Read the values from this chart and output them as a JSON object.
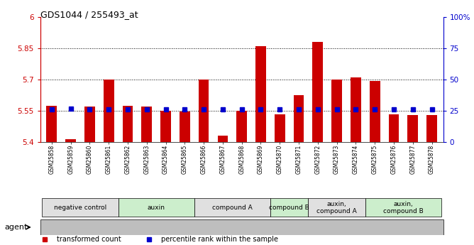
{
  "title": "GDS1044 / 255493_at",
  "samples": [
    "GSM25858",
    "GSM25859",
    "GSM25860",
    "GSM25861",
    "GSM25862",
    "GSM25863",
    "GSM25864",
    "GSM25865",
    "GSM25866",
    "GSM25867",
    "GSM25868",
    "GSM25869",
    "GSM25870",
    "GSM25871",
    "GSM25872",
    "GSM25873",
    "GSM25874",
    "GSM25875",
    "GSM25876",
    "GSM25877",
    "GSM25878"
  ],
  "bar_values": [
    5.575,
    5.415,
    5.57,
    5.7,
    5.575,
    5.57,
    5.55,
    5.548,
    5.7,
    5.43,
    5.55,
    5.86,
    5.535,
    5.625,
    5.88,
    5.7,
    5.71,
    5.695,
    5.535,
    5.53,
    5.53
  ],
  "percentile_values": [
    5.557,
    5.56,
    5.558,
    5.557,
    5.557,
    5.557,
    5.558,
    5.558,
    5.558,
    5.558,
    5.557,
    5.558,
    5.558,
    5.558,
    5.558,
    5.558,
    5.557,
    5.557,
    5.557,
    5.557,
    5.557
  ],
  "bar_color": "#cc0000",
  "percentile_color": "#0000cc",
  "ylim_left": [
    5.4,
    6.0
  ],
  "yticks_left": [
    5.4,
    5.55,
    5.7,
    5.85,
    6.0
  ],
  "ytick_labels_left": [
    "5.4",
    "5.55",
    "5.7",
    "5.85",
    "6"
  ],
  "ylim_right": [
    0,
    100
  ],
  "yticks_right": [
    0,
    25,
    50,
    75,
    100
  ],
  "ytick_labels_right": [
    "0",
    "25",
    "50",
    "75",
    "100%"
  ],
  "hlines": [
    5.55,
    5.7,
    5.85
  ],
  "groups": [
    {
      "label": "negative control",
      "start": 0,
      "end": 4,
      "color": "#e0e0e0"
    },
    {
      "label": "auxin",
      "start": 4,
      "end": 8,
      "color": "#cceecc"
    },
    {
      "label": "compound A",
      "start": 8,
      "end": 12,
      "color": "#e0e0e0"
    },
    {
      "label": "compound B",
      "start": 12,
      "end": 14,
      "color": "#cceecc"
    },
    {
      "label": "auxin,\ncompound A",
      "start": 14,
      "end": 17,
      "color": "#e0e0e0"
    },
    {
      "label": "auxin,\ncompound B",
      "start": 17,
      "end": 21,
      "color": "#cceecc"
    }
  ],
  "bar_width": 0.55,
  "bar_bottom": 5.4,
  "agent_label": "agent"
}
